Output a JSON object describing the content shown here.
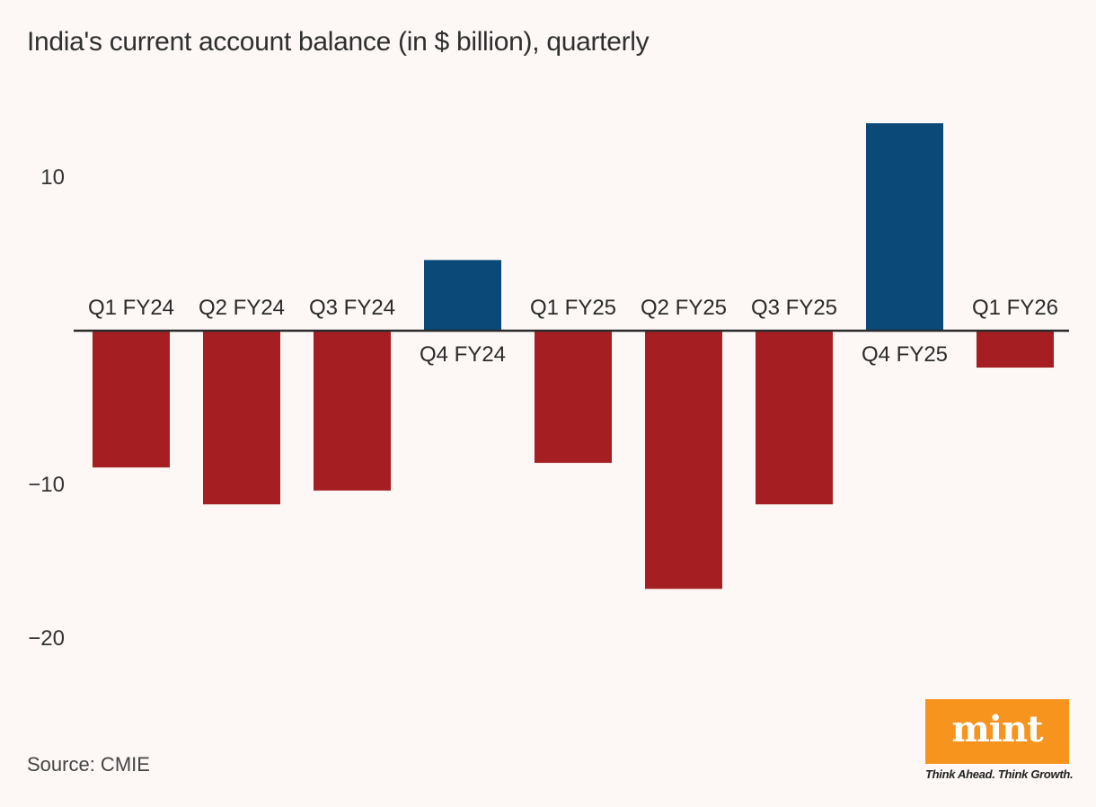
{
  "title": "India's current account balance (in $ billion), quarterly",
  "source": "Source: CMIE",
  "logo": {
    "word": "mint",
    "tagline": "Think Ahead. Think Growth."
  },
  "colors": {
    "positive": "#0b4a78",
    "negative": "#a41e22",
    "background": "#fdf8f6",
    "logo": "#f7941d"
  },
  "chart_data": {
    "type": "bar",
    "categories": [
      "Q1 FY24",
      "Q2 FY24",
      "Q3 FY24",
      "Q4 FY24",
      "Q1 FY25",
      "Q2 FY25",
      "Q3 FY25",
      "Q4 FY25",
      "Q1 FY26"
    ],
    "values": [
      -8.9,
      -11.3,
      -10.4,
      4.6,
      -8.6,
      -16.8,
      -11.3,
      13.5,
      -2.4
    ],
    "yticks": [
      10,
      -10,
      -20
    ],
    "ytick_labels": [
      "10",
      "−10",
      "−20"
    ],
    "ylim": [
      -25,
      15
    ],
    "grid": false,
    "legend": "none",
    "xlabel": "",
    "ylabel": ""
  }
}
